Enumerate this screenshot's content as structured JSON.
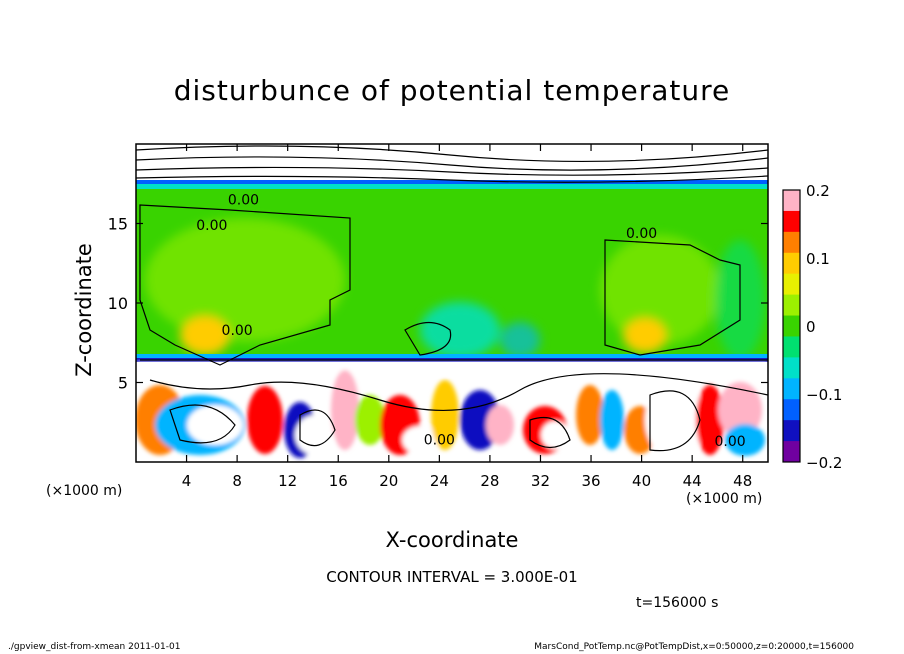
{
  "chart_data": {
    "type": "heatmap",
    "title": "disturbunce of potential temperature",
    "xlabel": "X-coordinate",
    "ylabel": "Z-coordinate",
    "x_unit": "(×1000 m)",
    "y_unit": "(×1000 m)",
    "xlim": [
      0,
      50
    ],
    "ylim": [
      0,
      20
    ],
    "x_ticks": [
      4,
      8,
      12,
      16,
      20,
      24,
      28,
      32,
      36,
      40,
      44,
      48
    ],
    "y_ticks": [
      5,
      10,
      15
    ],
    "colorbar": {
      "range": [
        -0.2,
        0.2
      ],
      "tick_values": [
        0.2,
        0.1,
        0,
        -0.1,
        -0.2
      ],
      "tick_labels": [
        "0.2",
        "0.1",
        "0",
        "−0.1",
        "−0.2"
      ],
      "colors": [
        "#ffb3c6",
        "#ff0000",
        "#ff7f00",
        "#ffcc00",
        "#e8f000",
        "#9cf000",
        "#39d300",
        "#00e070",
        "#00e0c8",
        "#00b4ff",
        "#0060ff",
        "#1010c0",
        "#7000a0"
      ]
    },
    "contour_labels": [
      {
        "text": "0.00",
        "x": 8.5,
        "z": 16.2
      },
      {
        "text": "0.00",
        "x": 6,
        "z": 14.6
      },
      {
        "text": "0.00",
        "x": 8,
        "z": 8.0
      },
      {
        "text": "0.00",
        "x": 40,
        "z": 14.1
      },
      {
        "text": "0.00",
        "x": 47,
        "z": 1.0
      },
      {
        "text": "0.00",
        "x": 24,
        "z": 1.1
      }
    ]
  },
  "contour_interval": "CONTOUR INTERVAL = 3.000E-01",
  "time": "t=156000 s",
  "footer_left": "./gpview_dist-from-xmean  2011-01-01",
  "footer_right": "MarsCond_PotTemp.nc@PotTempDist,x=0:50000,z=0:20000,t=156000"
}
